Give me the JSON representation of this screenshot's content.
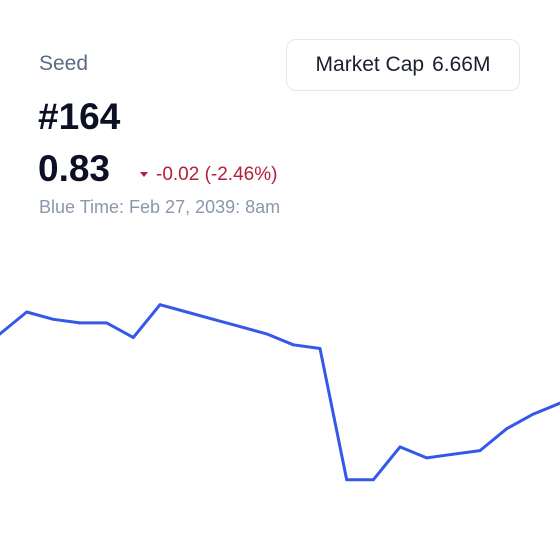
{
  "asset": {
    "name": "Seed",
    "rank": "#164",
    "price": "0.83",
    "change": "-0.02 (-2.46%)",
    "change_direction_icon": "caret-down-icon",
    "timestamp": "Blue Time: Feb 27, 2039: 8am"
  },
  "market_cap": {
    "label": "Market Cap",
    "value": "6.66M"
  },
  "colors": {
    "line": "#3558e8",
    "negative": "#b3203a"
  },
  "chart_data": {
    "type": "line",
    "title": "",
    "xlabel": "",
    "ylabel": "",
    "ylim": [
      0.79,
      0.875
    ],
    "grid": false,
    "series": [
      {
        "values": [
          0.852,
          0.858,
          0.856,
          0.855,
          0.855,
          0.851,
          0.86,
          0.858,
          0.856,
          0.854,
          0.852,
          0.849,
          0.848,
          0.812,
          0.812,
          0.821,
          0.818,
          0.819,
          0.82,
          0.826,
          0.83,
          0.833
        ]
      }
    ]
  }
}
